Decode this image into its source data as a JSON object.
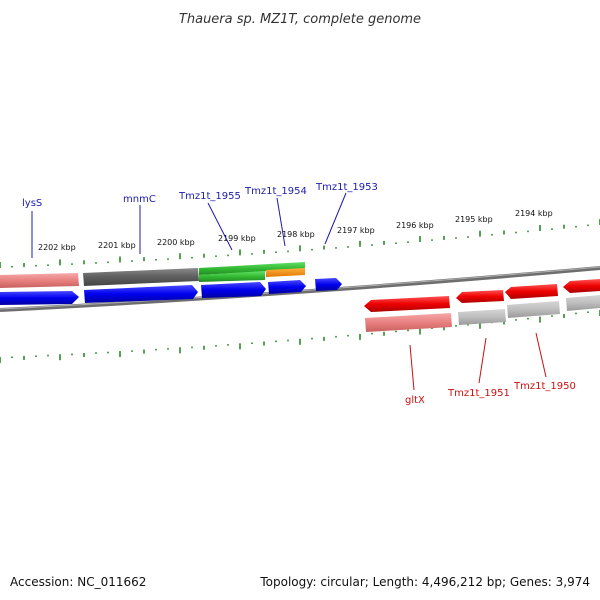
{
  "title": "Thauera sp. MZ1T, complete genome",
  "footer": {
    "accession": "Accession: NC_011662",
    "summary": "Topology: circular; Length: 4,496,212 bp; Genes: 3,974"
  },
  "colors": {
    "tick": "#2a8a2a",
    "backbone": "#808080",
    "forward_label": "#1b1bb0",
    "reverse_label": "#cc1010"
  },
  "kbp_labels": [
    "2202 kbp",
    "2201 kbp",
    "2200 kbp",
    "2199 kbp",
    "2198 kbp",
    "2197 kbp",
    "2196 kbp",
    "2195 kbp",
    "2194 kbp"
  ],
  "gene_labels": {
    "forward": [
      "lysS",
      "mnmC",
      "Tmz1t_1955",
      "Tmz1t_1954",
      "Tmz1t_1953"
    ],
    "reverse": [
      "gltX",
      "Tmz1t_1951",
      "Tmz1t_1950"
    ]
  }
}
